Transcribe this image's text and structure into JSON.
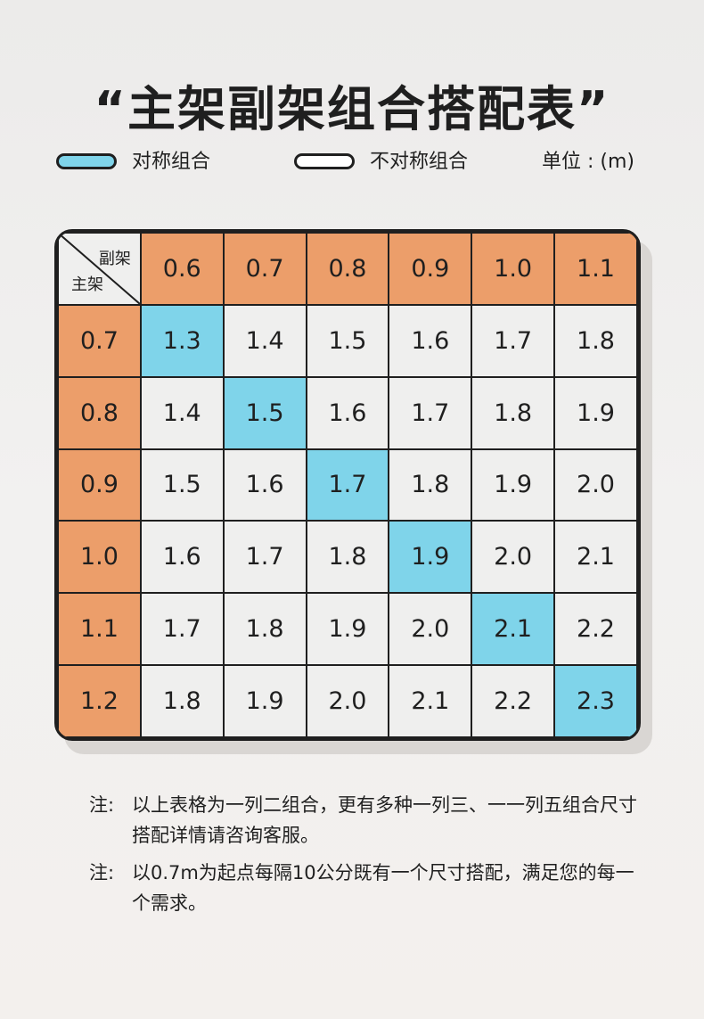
{
  "title": "“主架副架组合搭配表”",
  "legend": {
    "symmetric_label": "对称组合",
    "asymmetric_label": "不对称组合",
    "unit_label": "单位 : (m)",
    "colors": {
      "symmetric": "#7fd4ea",
      "asymmetric": "#efefee",
      "header": "#ec9e6a"
    }
  },
  "table": {
    "corner_sub": "副架",
    "corner_main": "主架",
    "col_headers": [
      "0.6",
      "0.7",
      "0.8",
      "0.9",
      "1.0",
      "1.1"
    ],
    "rows": [
      {
        "header": "0.7",
        "cells": [
          "1.3",
          "1.4",
          "1.5",
          "1.6",
          "1.7",
          "1.8"
        ],
        "symmetric_index": 0
      },
      {
        "header": "0.8",
        "cells": [
          "1.4",
          "1.5",
          "1.6",
          "1.7",
          "1.8",
          "1.9"
        ],
        "symmetric_index": 1
      },
      {
        "header": "0.9",
        "cells": [
          "1.5",
          "1.6",
          "1.7",
          "1.8",
          "1.9",
          "2.0"
        ],
        "symmetric_index": 2
      },
      {
        "header": "1.0",
        "cells": [
          "1.6",
          "1.7",
          "1.8",
          "1.9",
          "2.0",
          "2.1"
        ],
        "symmetric_index": 3
      },
      {
        "header": "1.1",
        "cells": [
          "1.7",
          "1.8",
          "1.9",
          "2.0",
          "2.1",
          "2.2"
        ],
        "symmetric_index": 4
      },
      {
        "header": "1.2",
        "cells": [
          "1.8",
          "1.9",
          "2.0",
          "2.1",
          "2.2",
          "2.3"
        ],
        "symmetric_index": 5
      }
    ]
  },
  "notes": [
    {
      "prefix": "注:",
      "text": "以上表格为一列二组合，更有多种一列三、一一列五组合尺寸搭配详情请咨询客服。"
    },
    {
      "prefix": "注:",
      "text": "以0.7m为起点每隔10公分既有一个尺寸搭配，满足您的每一个需求。"
    }
  ]
}
